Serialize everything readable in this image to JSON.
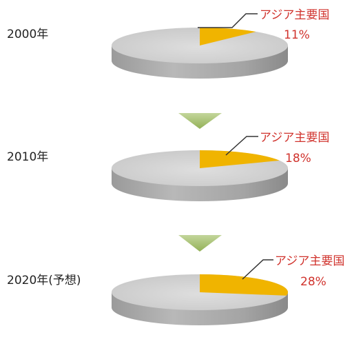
{
  "chart_data": {
    "type": "pie",
    "title": "",
    "charts": [
      {
        "year_label": "2000年",
        "slices": [
          {
            "name": "アジア主要国",
            "value": 11,
            "value_label": "11%",
            "color": "#f0b400"
          },
          {
            "name": "",
            "value": 89,
            "value_label": "",
            "color": "#c8c8c8"
          }
        ]
      },
      {
        "year_label": "2010年",
        "slices": [
          {
            "name": "アジア主要国",
            "value": 18,
            "value_label": "18%",
            "color": "#f0b400"
          },
          {
            "name": "",
            "value": 82,
            "value_label": "",
            "color": "#c8c8c8"
          }
        ]
      },
      {
        "year_label": "2020年(予想)",
        "slices": [
          {
            "name": "アジア主要国",
            "value": 28,
            "value_label": "28%",
            "color": "#f0b400"
          },
          {
            "name": "",
            "value": 72,
            "value_label": "",
            "color": "#c8c8c8"
          }
        ]
      }
    ],
    "connector_color": "#9dbb5a",
    "leader_line_color": "#333333"
  }
}
